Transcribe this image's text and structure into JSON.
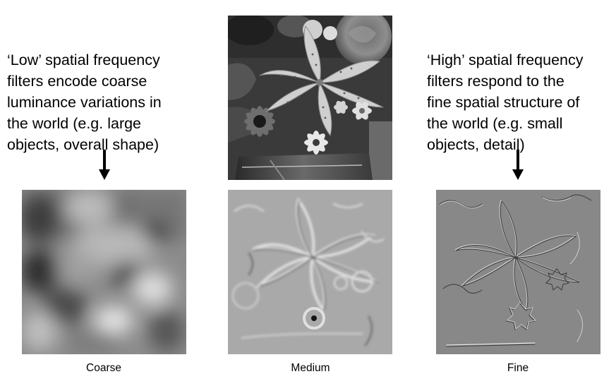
{
  "annotations": {
    "low": {
      "lines": [
        "‘Low’ spatial frequency",
        "filters encode coarse",
        "luminance variations in",
        "the world (e.g. large",
        "objects, overall shape)"
      ]
    },
    "high": {
      "lines": [
        "‘High’ spatial frequency",
        "filters respond to the",
        "fine spatial structure of",
        "the world (e.g. small",
        "objects, detail)"
      ]
    }
  },
  "captions": {
    "coarse": "Coarse",
    "medium": "Medium",
    "fine": "Fine"
  },
  "colors": {
    "text": "#000000",
    "coarse_bg": "#8c8c8c",
    "medium_bg": "#a9a9a9",
    "fine_bg": "#888888",
    "photo_bg": "#3a3a3a"
  }
}
